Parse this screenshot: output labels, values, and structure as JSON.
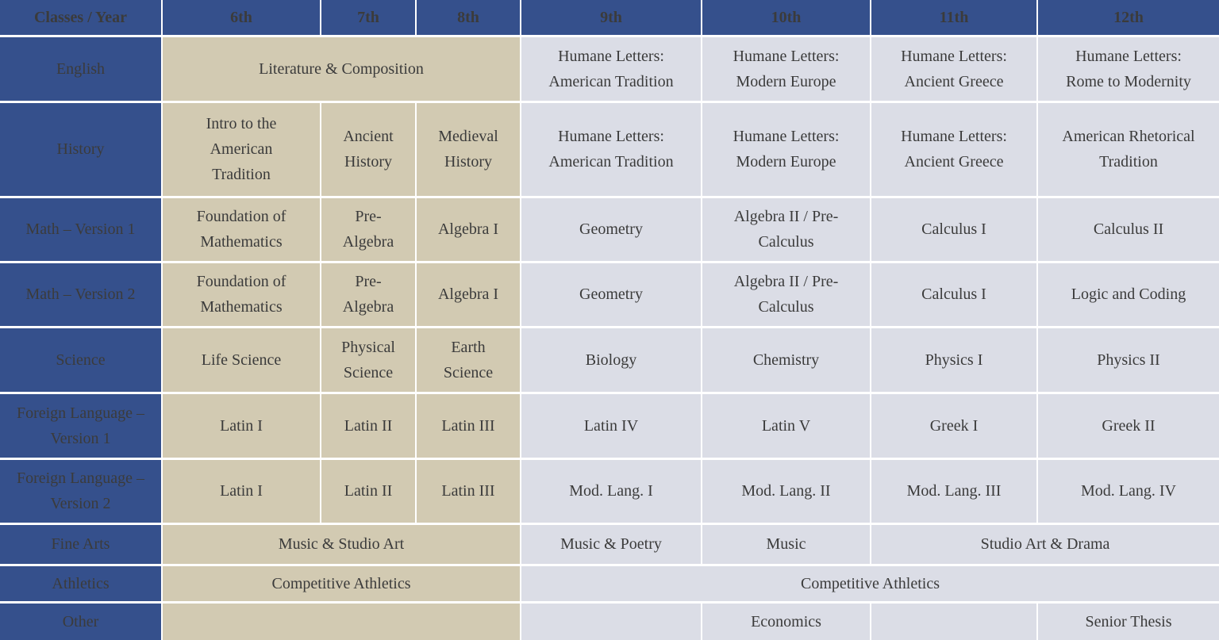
{
  "colors": {
    "header_blue": "#35508C",
    "middle_school_tan": "#D2CAB2",
    "high_school_gray": "#DBDDE6",
    "grid_white": "#FFFFFF",
    "body_text": "#3B3B3B",
    "header_text": "#FFFFFF"
  },
  "table": {
    "header": {
      "corner": "Classes / Year",
      "years": [
        "6th",
        "7th",
        "8th",
        "9th",
        "10th",
        "11th",
        "12th"
      ]
    },
    "rows": [
      {
        "id": "english",
        "label": "English",
        "cells": [
          {
            "text": "Literature & Composition",
            "bg": "tan",
            "span": 3
          },
          {
            "text": "Humane Letters:\nAmerican Tradition",
            "bg": "gray"
          },
          {
            "text": "Humane Letters:\nModern Europe",
            "bg": "gray"
          },
          {
            "text": "Humane Letters:\nAncient Greece",
            "bg": "gray"
          },
          {
            "text": "Humane Letters:\nRome to Modernity",
            "bg": "gray"
          }
        ]
      },
      {
        "id": "history",
        "label": "History",
        "cells": [
          {
            "text": "Intro to the\nAmerican\nTradition",
            "bg": "tan"
          },
          {
            "text": "Ancient\nHistory",
            "bg": "tan"
          },
          {
            "text": "Medieval\nHistory",
            "bg": "tan"
          },
          {
            "text": "Humane Letters:\nAmerican Tradition",
            "bg": "gray"
          },
          {
            "text": "Humane Letters:\nModern Europe",
            "bg": "gray"
          },
          {
            "text": "Humane Letters:\nAncient Greece",
            "bg": "gray"
          },
          {
            "text": "American Rhetorical\nTradition",
            "bg": "gray"
          }
        ]
      },
      {
        "id": "math-v1",
        "label": "Math – Version 1",
        "cells": [
          {
            "text": "Foundation of\nMathematics",
            "bg": "tan"
          },
          {
            "text": "Pre-\nAlgebra",
            "bg": "tan"
          },
          {
            "text": "Algebra I",
            "bg": "tan"
          },
          {
            "text": "Geometry",
            "bg": "gray"
          },
          {
            "text": "Algebra II / Pre-\nCalculus",
            "bg": "gray"
          },
          {
            "text": "Calculus I",
            "bg": "gray"
          },
          {
            "text": "Calculus II",
            "bg": "gray"
          }
        ]
      },
      {
        "id": "math-v2",
        "label": "Math – Version 2",
        "cells": [
          {
            "text": "Foundation of\nMathematics",
            "bg": "tan"
          },
          {
            "text": "Pre-\nAlgebra",
            "bg": "tan"
          },
          {
            "text": "Algebra I",
            "bg": "tan"
          },
          {
            "text": "Geometry",
            "bg": "gray"
          },
          {
            "text": "Algebra II / Pre-\nCalculus",
            "bg": "gray"
          },
          {
            "text": "Calculus I",
            "bg": "gray"
          },
          {
            "text": "Logic and Coding",
            "bg": "gray"
          }
        ]
      },
      {
        "id": "science",
        "label": "Science",
        "cells": [
          {
            "text": "Life Science",
            "bg": "tan"
          },
          {
            "text": "Physical\nScience",
            "bg": "tan"
          },
          {
            "text": "Earth\nScience",
            "bg": "tan"
          },
          {
            "text": "Biology",
            "bg": "gray"
          },
          {
            "text": "Chemistry",
            "bg": "gray"
          },
          {
            "text": "Physics I",
            "bg": "gray"
          },
          {
            "text": "Physics II",
            "bg": "gray"
          }
        ]
      },
      {
        "id": "foreign-language-v1",
        "label": "Foreign Language –\nVersion 1",
        "cells": [
          {
            "text": "Latin I",
            "bg": "tan"
          },
          {
            "text": "Latin II",
            "bg": "tan"
          },
          {
            "text": "Latin III",
            "bg": "tan"
          },
          {
            "text": "Latin IV",
            "bg": "gray"
          },
          {
            "text": "Latin V",
            "bg": "gray"
          },
          {
            "text": "Greek I",
            "bg": "gray"
          },
          {
            "text": "Greek II",
            "bg": "gray"
          }
        ]
      },
      {
        "id": "foreign-language-v2",
        "label": "Foreign Language –\nVersion 2",
        "cells": [
          {
            "text": "Latin I",
            "bg": "tan"
          },
          {
            "text": "Latin II",
            "bg": "tan"
          },
          {
            "text": "Latin III",
            "bg": "tan"
          },
          {
            "text": "Mod. Lang. I",
            "bg": "gray"
          },
          {
            "text": "Mod. Lang. II",
            "bg": "gray"
          },
          {
            "text": "Mod. Lang. III",
            "bg": "gray"
          },
          {
            "text": "Mod. Lang. IV",
            "bg": "gray"
          }
        ]
      },
      {
        "id": "fine-arts",
        "label": "Fine Arts",
        "cells": [
          {
            "text": "Music & Studio Art",
            "bg": "tan",
            "span": 3
          },
          {
            "text": "Music & Poetry",
            "bg": "gray"
          },
          {
            "text": "Music",
            "bg": "gray"
          },
          {
            "text": "Studio Art & Drama",
            "bg": "gray",
            "span": 2
          }
        ]
      },
      {
        "id": "athletics",
        "label": "Athletics",
        "cells": [
          {
            "text": "Competitive Athletics",
            "bg": "tan",
            "span": 3
          },
          {
            "text": "Competitive Athletics",
            "bg": "gray",
            "span": 4
          }
        ]
      },
      {
        "id": "other",
        "label": "Other",
        "cells": [
          {
            "text": "",
            "bg": "tan",
            "span": 3
          },
          {
            "text": "",
            "bg": "gray"
          },
          {
            "text": "Economics",
            "bg": "gray"
          },
          {
            "text": "",
            "bg": "gray"
          },
          {
            "text": "Senior Thesis",
            "bg": "gray"
          }
        ]
      }
    ]
  }
}
